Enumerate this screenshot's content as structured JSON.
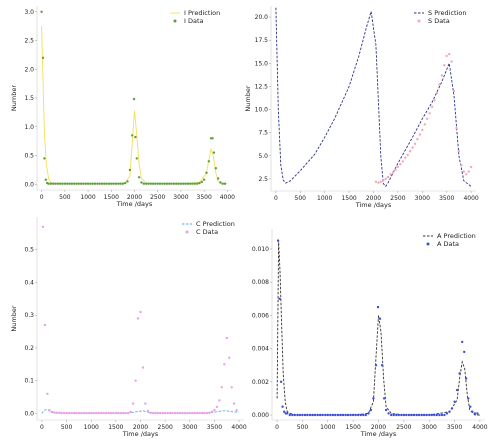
{
  "chart_data": [
    {
      "id": "I",
      "type": "line+scatter",
      "xlabel": "Time /days",
      "ylabel": "Number",
      "xlim": [
        -100,
        4100
      ],
      "ylim": [
        -0.1,
        3.1
      ],
      "xticks": [
        0,
        500,
        1000,
        1500,
        2000,
        2500,
        3000,
        3500,
        4000
      ],
      "yticks": [
        0.0,
        0.5,
        1.0,
        1.5,
        2.0,
        2.5,
        3.0
      ],
      "ytick_decimals": 1,
      "legend_position": "top-right",
      "colors": {
        "line": "#f2e05a",
        "marker": "#5e9e3a"
      },
      "series": [
        {
          "name": "I Prediction",
          "kind": "line",
          "x": [
            0,
            30,
            60,
            100,
            150,
            200,
            300,
            500,
            1000,
            1500,
            1800,
            1900,
            1950,
            2000,
            2050,
            2100,
            2150,
            2250,
            2500,
            3000,
            3400,
            3550,
            3600,
            3650,
            3700,
            3750,
            3800,
            3900,
            4000
          ],
          "y": [
            2.75,
            1.8,
            0.9,
            0.35,
            0.1,
            0.03,
            0.01,
            0.01,
            0.01,
            0.01,
            0.02,
            0.15,
            0.7,
            1.28,
            0.85,
            0.35,
            0.1,
            0.02,
            0.01,
            0.01,
            0.03,
            0.2,
            0.42,
            0.62,
            0.48,
            0.2,
            0.05,
            0.01,
            0.01
          ]
        },
        {
          "name": "I Data",
          "kind": "scatter",
          "x": [
            0,
            30,
            60,
            90,
            120,
            150,
            200,
            250,
            300,
            350,
            400,
            450,
            500,
            550,
            600,
            650,
            700,
            750,
            800,
            850,
            900,
            950,
            1000,
            1050,
            1100,
            1150,
            1200,
            1250,
            1300,
            1350,
            1400,
            1450,
            1500,
            1550,
            1600,
            1650,
            1700,
            1750,
            1800,
            1850,
            1900,
            1950,
            1990,
            2020,
            2050,
            2100,
            2150,
            2200,
            2250,
            2300,
            2350,
            2400,
            2450,
            2500,
            2550,
            2600,
            2650,
            2700,
            2750,
            2800,
            2850,
            2900,
            2950,
            3000,
            3050,
            3100,
            3150,
            3200,
            3250,
            3300,
            3350,
            3400,
            3450,
            3500,
            3550,
            3600,
            3650,
            3680,
            3710,
            3750,
            3800,
            3850,
            3900,
            3950
          ],
          "y": [
            3.0,
            2.2,
            0.45,
            0.08,
            0.02,
            0.01,
            0.01,
            0.01,
            0.01,
            0.01,
            0.01,
            0.01,
            0.01,
            0.01,
            0.01,
            0.01,
            0.01,
            0.01,
            0.01,
            0.01,
            0.01,
            0.01,
            0.01,
            0.01,
            0.01,
            0.01,
            0.01,
            0.01,
            0.01,
            0.01,
            0.01,
            0.01,
            0.01,
            0.01,
            0.01,
            0.01,
            0.01,
            0.01,
            0.02,
            0.05,
            0.25,
            0.85,
            1.48,
            0.82,
            0.45,
            0.12,
            0.03,
            0.01,
            0.01,
            0.01,
            0.01,
            0.01,
            0.01,
            0.01,
            0.01,
            0.01,
            0.01,
            0.01,
            0.01,
            0.01,
            0.01,
            0.01,
            0.01,
            0.01,
            0.01,
            0.01,
            0.01,
            0.01,
            0.01,
            0.01,
            0.01,
            0.02,
            0.04,
            0.08,
            0.2,
            0.4,
            0.8,
            0.8,
            0.55,
            0.28,
            0.1,
            0.03,
            0.01,
            0.01
          ]
        }
      ]
    },
    {
      "id": "S",
      "type": "line+scatter",
      "xlabel": "Time /days",
      "ylabel": "Number",
      "xlim": [
        -100,
        4100
      ],
      "ylim": [
        1.2,
        21.2
      ],
      "xticks": [
        0,
        500,
        1000,
        1500,
        2000,
        2500,
        3000,
        3500,
        4000
      ],
      "yticks": [
        2.5,
        5.0,
        7.5,
        10.0,
        12.5,
        15.0,
        17.5,
        20.0
      ],
      "ytick_decimals": 1,
      "legend_position": "top-right",
      "colors": {
        "line": "#2b2f8a",
        "marker": "#f4a7b4"
      },
      "series": [
        {
          "name": "S Prediction",
          "kind": "line",
          "x": [
            0,
            50,
            100,
            150,
            200,
            300,
            500,
            800,
            1000,
            1200,
            1500,
            1700,
            1850,
            1950,
            2050,
            2150,
            2200,
            2250,
            2300,
            2500,
            2800,
            3000,
            3200,
            3400,
            3550,
            3650,
            3750,
            3850,
            4000
          ],
          "y": [
            21.0,
            10.0,
            4.0,
            2.4,
            2.05,
            2.3,
            3.4,
            5.2,
            7.0,
            9.0,
            12.5,
            15.8,
            18.8,
            20.6,
            17.0,
            5.0,
            2.0,
            1.7,
            2.1,
            4.2,
            7.0,
            9.0,
            10.8,
            13.0,
            15.0,
            11.5,
            5.0,
            2.3,
            1.7
          ]
        },
        {
          "name": "S Data",
          "kind": "scatter",
          "x": [
            2050,
            2100,
            2150,
            2200,
            2250,
            2300,
            2350,
            2400,
            2450,
            2500,
            2550,
            2600,
            2650,
            2700,
            2750,
            2800,
            2850,
            2900,
            2950,
            3000,
            3050,
            3100,
            3150,
            3200,
            3250,
            3300,
            3350,
            3400,
            3450,
            3500,
            3550,
            3600,
            3650,
            3700,
            3750,
            3800,
            3850,
            3900,
            3950,
            4000
          ],
          "y": [
            2.2,
            2.1,
            2.2,
            2.3,
            2.5,
            2.7,
            3.0,
            3.2,
            3.5,
            3.8,
            4.1,
            4.4,
            4.8,
            5.1,
            5.5,
            5.9,
            6.3,
            6.8,
            7.3,
            7.8,
            8.4,
            9.0,
            9.6,
            10.3,
            11.0,
            11.8,
            12.7,
            13.7,
            14.8,
            15.8,
            16.0,
            15.2,
            12.0,
            8.0,
            5.5,
            4.0,
            3.3,
            3.0,
            3.3,
            3.8
          ]
        }
      ]
    },
    {
      "id": "C",
      "type": "line+scatter",
      "xlabel": "Time /days",
      "ylabel": "Number",
      "xlim": [
        -100,
        4100
      ],
      "ylim": [
        -0.02,
        0.6
      ],
      "xticks": [
        0,
        500,
        1000,
        1500,
        2000,
        2500,
        3000,
        3500,
        4000
      ],
      "yticks": [
        0.0,
        0.1,
        0.2,
        0.3,
        0.4,
        0.5
      ],
      "ytick_decimals": 1,
      "legend_position": "top-right",
      "colors": {
        "line": "#5aa9e6",
        "marker": "#e9a0e6"
      },
      "series": [
        {
          "name": "C Prediction",
          "kind": "line",
          "x": [
            0,
            50,
            100,
            150,
            200,
            300,
            500,
            1000,
            1500,
            1800,
            1950,
            2050,
            2150,
            2300,
            2500,
            3000,
            3400,
            3550,
            3650,
            3750,
            3850,
            4000
          ],
          "y": [
            0.0,
            0.01,
            0.012,
            0.008,
            0.003,
            0.001,
            0.001,
            0.001,
            0.001,
            0.002,
            0.006,
            0.008,
            0.004,
            0.001,
            0.001,
            0.001,
            0.002,
            0.005,
            0.008,
            0.008,
            0.005,
            0.004
          ]
        },
        {
          "name": "C Data",
          "kind": "scatter",
          "x": [
            20,
            60,
            110,
            150,
            200,
            250,
            300,
            350,
            400,
            450,
            500,
            550,
            600,
            650,
            700,
            750,
            800,
            850,
            900,
            950,
            1000,
            1050,
            1100,
            1150,
            1200,
            1250,
            1300,
            1350,
            1400,
            1450,
            1500,
            1550,
            1600,
            1650,
            1700,
            1750,
            1800,
            1850,
            1900,
            1950,
            2000,
            2050,
            2100,
            2150,
            2200,
            2250,
            2300,
            2350,
            2400,
            2450,
            2500,
            2550,
            2600,
            2650,
            2700,
            2750,
            2800,
            2850,
            2900,
            2950,
            3000,
            3050,
            3100,
            3150,
            3200,
            3250,
            3300,
            3350,
            3400,
            3450,
            3500,
            3550,
            3600,
            3650,
            3700,
            3750,
            3800,
            3850,
            3900,
            3950
          ],
          "y": [
            0.57,
            0.27,
            0.06,
            0.01,
            0.005,
            0.003,
            0.002,
            0.002,
            0.001,
            0.001,
            0.001,
            0.001,
            0.001,
            0.001,
            0.001,
            0.001,
            0.001,
            0.001,
            0.001,
            0.001,
            0.001,
            0.001,
            0.001,
            0.001,
            0.001,
            0.001,
            0.001,
            0.001,
            0.001,
            0.001,
            0.001,
            0.001,
            0.001,
            0.001,
            0.001,
            0.001,
            0.005,
            0.03,
            0.1,
            0.29,
            0.31,
            0.14,
            0.03,
            0.008,
            0.002,
            0.001,
            0.001,
            0.001,
            0.001,
            0.001,
            0.001,
            0.001,
            0.001,
            0.001,
            0.001,
            0.001,
            0.001,
            0.001,
            0.001,
            0.001,
            0.001,
            0.001,
            0.001,
            0.001,
            0.001,
            0.001,
            0.001,
            0.001,
            0.002,
            0.005,
            0.01,
            0.02,
            0.04,
            0.08,
            0.15,
            0.23,
            0.17,
            0.08,
            0.03,
            0.01
          ]
        }
      ]
    },
    {
      "id": "A",
      "type": "line+scatter",
      "xlabel": "Time /days",
      "ylabel": "",
      "xlim": [
        -100,
        4100
      ],
      "ylim": [
        -0.0003,
        0.0112
      ],
      "xticks": [
        0,
        500,
        1000,
        1500,
        2000,
        2500,
        3000,
        3500,
        4000
      ],
      "yticks": [
        0.0,
        0.002,
        0.004,
        0.006,
        0.008,
        0.01
      ],
      "ytick_decimals": 3,
      "legend_position": "top-right",
      "colors": {
        "line": "#333333",
        "marker": "#3b4fd8"
      },
      "series": [
        {
          "name": "A Prediction",
          "kind": "line",
          "x": [
            0,
            30,
            60,
            90,
            120,
            160,
            200,
            260,
            350,
            500,
            1000,
            1500,
            1800,
            1900,
            1950,
            2000,
            2050,
            2100,
            2150,
            2250,
            2500,
            3000,
            3400,
            3550,
            3600,
            3650,
            3700,
            3750,
            3800,
            3900,
            4000
          ],
          "y": [
            0.001,
            0.0105,
            0.0085,
            0.0055,
            0.0025,
            0.0008,
            0.0002,
            0.0001,
            0.0,
            0.0,
            0.0,
            0.0,
            0.0001,
            0.0008,
            0.0035,
            0.006,
            0.005,
            0.0022,
            0.0005,
            0.0001,
            0.0,
            0.0,
            0.0002,
            0.0009,
            0.0022,
            0.0032,
            0.0028,
            0.0012,
            0.0003,
            0.0,
            0.0
          ]
        },
        {
          "name": "A Data",
          "kind": "scatter",
          "x": [
            20,
            50,
            80,
            110,
            140,
            170,
            200,
            250,
            300,
            350,
            400,
            450,
            500,
            550,
            600,
            650,
            700,
            750,
            800,
            850,
            900,
            950,
            1000,
            1050,
            1100,
            1150,
            1200,
            1250,
            1300,
            1350,
            1400,
            1450,
            1500,
            1550,
            1600,
            1650,
            1700,
            1750,
            1800,
            1850,
            1900,
            1950,
            1990,
            2030,
            2070,
            2110,
            2150,
            2200,
            2250,
            2300,
            2350,
            2400,
            2450,
            2500,
            2550,
            2600,
            2650,
            2700,
            2750,
            2800,
            2850,
            2900,
            2950,
            3000,
            3050,
            3100,
            3150,
            3200,
            3250,
            3300,
            3350,
            3400,
            3450,
            3500,
            3550,
            3600,
            3650,
            3690,
            3730,
            3770,
            3810,
            3850,
            3900,
            3950
          ],
          "y": [
            0.0105,
            0.007,
            0.002,
            0.0005,
            0.0002,
            0.0001,
            0.0001,
            0.0,
            0.0,
            0.0,
            0.0,
            0.0,
            0.0,
            0.0,
            0.0,
            0.0,
            0.0,
            0.0,
            0.0,
            0.0,
            0.0,
            0.0,
            0.0,
            0.0,
            0.0,
            0.0,
            0.0,
            0.0,
            0.0,
            0.0,
            0.0,
            0.0,
            0.0,
            0.0,
            0.0,
            0.0,
            0.0,
            0.0,
            0.0001,
            0.0003,
            0.001,
            0.003,
            0.0065,
            0.0058,
            0.003,
            0.001,
            0.0003,
            0.0001,
            0.0,
            0.0,
            0.0,
            0.0,
            0.0,
            0.0,
            0.0,
            0.0,
            0.0,
            0.0,
            0.0,
            0.0,
            0.0,
            0.0,
            0.0,
            0.0,
            0.0,
            0.0,
            0.0,
            0.0,
            0.0,
            0.0,
            0.0001,
            0.0002,
            0.0004,
            0.0008,
            0.0015,
            0.0025,
            0.0044,
            0.0038,
            0.0022,
            0.001,
            0.0005,
            0.0002,
            0.0001,
            0.0001
          ]
        }
      ]
    }
  ]
}
